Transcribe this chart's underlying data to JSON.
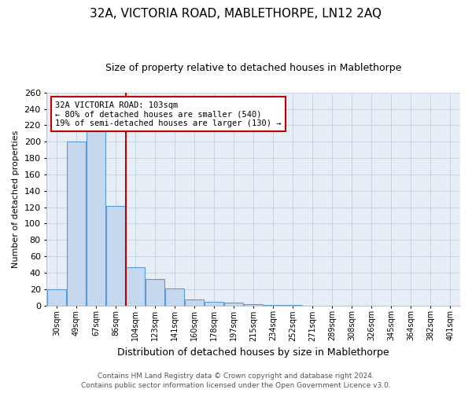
{
  "title": "32A, VICTORIA ROAD, MABLETHORPE, LN12 2AQ",
  "subtitle": "Size of property relative to detached houses in Mablethorpe",
  "xlabel": "Distribution of detached houses by size in Mablethorpe",
  "ylabel": "Number of detached properties",
  "footnote1": "Contains HM Land Registry data © Crown copyright and database right 2024.",
  "footnote2": "Contains public sector information licensed under the Open Government Licence v3.0.",
  "property_label": "32A VICTORIA ROAD: 103sqm",
  "annotation_line1": "← 80% of detached houses are smaller (540)",
  "annotation_line2": "19% of semi-detached houses are larger (130) →",
  "bar_labels": [
    "30sqm",
    "49sqm",
    "67sqm",
    "86sqm",
    "104sqm",
    "123sqm",
    "141sqm",
    "160sqm",
    "178sqm",
    "197sqm",
    "215sqm",
    "234sqm",
    "252sqm",
    "271sqm",
    "289sqm",
    "308sqm",
    "326sqm",
    "345sqm",
    "364sqm",
    "382sqm",
    "401sqm"
  ],
  "bar_values": [
    20,
    200,
    213,
    122,
    47,
    32,
    21,
    7,
    4,
    3,
    2,
    1,
    1,
    0,
    0,
    0,
    0,
    0,
    0,
    0,
    0
  ],
  "bar_color": "#c5d8ed",
  "bar_edge_color": "#5b9bd5",
  "vline_color": "#c00000",
  "annotation_box_color": "#c00000",
  "grid_color": "#c8d4e3",
  "bg_color": "#e8eef5",
  "ylim": [
    0,
    260
  ],
  "yticks": [
    0,
    20,
    40,
    60,
    80,
    100,
    120,
    140,
    160,
    180,
    200,
    220,
    240,
    260
  ]
}
